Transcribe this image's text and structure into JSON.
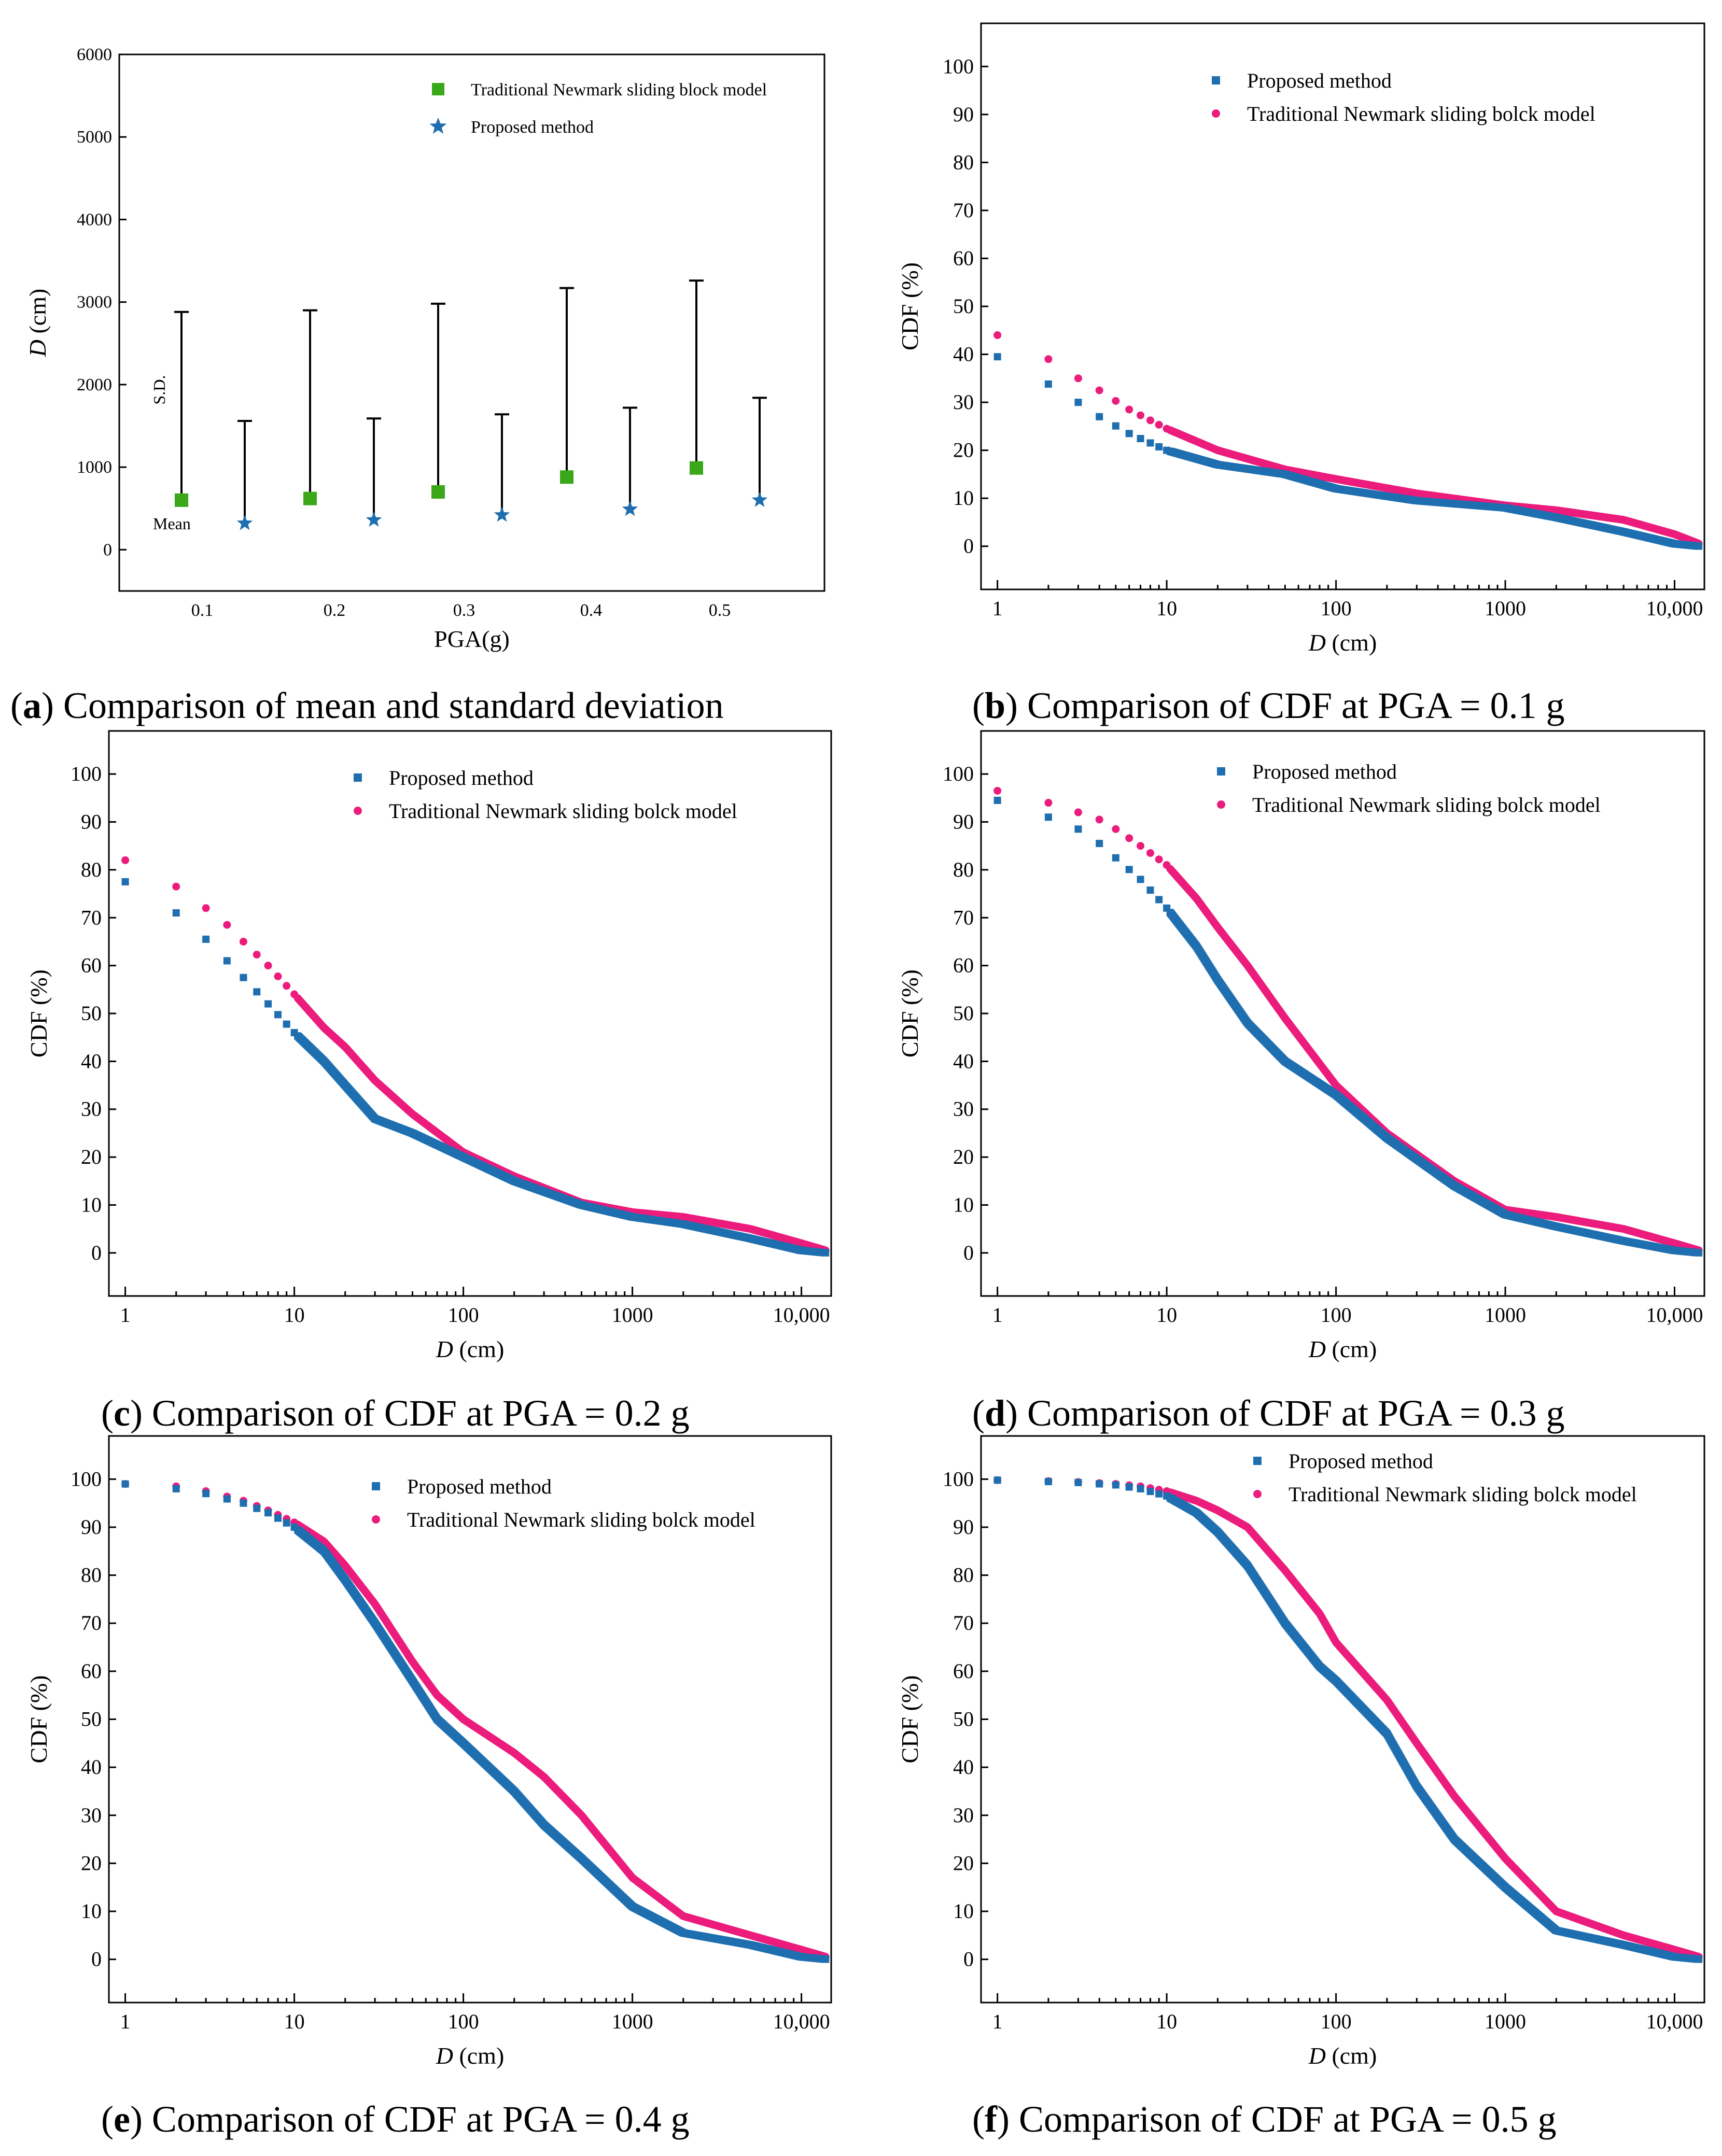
{
  "colors": {
    "proposed": "#1f6fb0",
    "traditional": "#ec1c7c",
    "traditional_bar": "#3aa81a",
    "axis": "#000000"
  },
  "chart_data": [
    {
      "id": "a",
      "type": "scatter",
      "caption_letter": "a",
      "caption_text": " Comparison of mean and standard deviation",
      "xlabel": "PGA(g)",
      "ylabel_italic": "D",
      "ylabel_rest": " (cm)",
      "xticks": [
        "0.1",
        "0.2",
        "0.3",
        "0.4",
        "0.5"
      ],
      "ylim": [
        -500,
        6000
      ],
      "yticks": [
        0,
        1000,
        2000,
        3000,
        4000,
        5000,
        6000
      ],
      "annotations": {
        "sd": "S.D.",
        "mean": "Mean"
      },
      "legend_position": "top-right",
      "series": [
        {
          "name": "Traditional Newmark sliding block model",
          "marker": "square",
          "pga": [
            0.1,
            0.2,
            0.3,
            0.4,
            0.5
          ],
          "mean": [
            600,
            620,
            700,
            880,
            990
          ],
          "upper": [
            2880,
            2900,
            2980,
            3170,
            3260
          ]
        },
        {
          "name": "Proposed method",
          "marker": "star",
          "pga": [
            0.1,
            0.2,
            0.3,
            0.4,
            0.5
          ],
          "mean": [
            320,
            360,
            420,
            490,
            600
          ],
          "upper": [
            1560,
            1590,
            1640,
            1720,
            1840
          ]
        }
      ]
    },
    {
      "id": "b",
      "type": "scatter",
      "caption_letter": "b",
      "caption_text": " Comparison of CDF at PGA = 0.1 g",
      "xlabel_italic": "D",
      "xlabel_rest": " (cm)",
      "ylabel": "CDF (%)",
      "xscale": "log",
      "xlim": [
        0.8,
        15000
      ],
      "ylim": [
        -9,
        109
      ],
      "xticks": [
        "1",
        "10",
        "100",
        "1000",
        "10,000"
      ],
      "yticks": [
        0,
        10,
        20,
        30,
        40,
        50,
        60,
        70,
        80,
        90,
        100
      ],
      "legend_position": "top-right",
      "series": [
        {
          "name": "Proposed method",
          "marker": "square",
          "x": [
            1,
            2,
            3,
            4,
            6,
            10,
            20,
            50,
            100,
            300,
            1000,
            2000,
            5000,
            10000,
            14000
          ],
          "y": [
            39.5,
            33.8,
            30,
            27,
            23.5,
            20,
            17,
            15,
            12,
            9.5,
            8,
            6,
            3,
            0.5,
            0
          ]
        },
        {
          "name": "Traditional Newmark sliding bolck model",
          "marker": "circle",
          "x": [
            1,
            2,
            3,
            4,
            6,
            10,
            20,
            50,
            100,
            300,
            1000,
            2000,
            5000,
            10000,
            14000
          ],
          "y": [
            44,
            39,
            35,
            32.5,
            28.5,
            24.5,
            20,
            16,
            14,
            11,
            8.5,
            7.5,
            5.5,
            2.5,
            0.5
          ]
        }
      ]
    },
    {
      "id": "c",
      "type": "scatter",
      "caption_letter": "c",
      "caption_text": " Comparison of CDF at PGA = 0.2 g",
      "xlabel_italic": "D",
      "xlabel_rest": " (cm)",
      "ylabel": "CDF (%)",
      "xscale": "log",
      "xlim": [
        0.8,
        15000
      ],
      "ylim": [
        -9,
        109
      ],
      "xticks": [
        "1",
        "10",
        "100",
        "1000",
        "10,000"
      ],
      "yticks": [
        0,
        10,
        20,
        30,
        40,
        50,
        60,
        70,
        80,
        90,
        100
      ],
      "legend_position": "top-right",
      "series": [
        {
          "name": "Proposed method",
          "marker": "square",
          "x": [
            1,
            2,
            3,
            4,
            5,
            7,
            10,
            15,
            20,
            30,
            50,
            100,
            200,
            500,
            1000,
            2000,
            5000,
            10000,
            14000
          ],
          "y": [
            77.5,
            71,
            65.5,
            61,
            57.5,
            52,
            46,
            40,
            35,
            28,
            25,
            20,
            15,
            10,
            7.5,
            6,
            3,
            0.5,
            0
          ]
        },
        {
          "name": "Traditional Newmark sliding bolck model",
          "marker": "circle",
          "x": [
            1,
            2,
            3,
            4,
            5,
            7,
            10,
            15,
            20,
            30,
            50,
            100,
            200,
            500,
            1000,
            2000,
            5000,
            10000,
            14000
          ],
          "y": [
            82,
            76.5,
            72,
            68.5,
            65,
            60,
            54,
            47,
            43,
            36,
            29,
            21,
            16,
            10.5,
            8.5,
            7.5,
            5,
            2,
            0.5
          ]
        }
      ]
    },
    {
      "id": "d",
      "type": "scatter",
      "caption_letter": "d",
      "caption_text": " Comparison of CDF at PGA = 0.3 g",
      "xlabel_italic": "D",
      "xlabel_rest": " (cm)",
      "ylabel": "CDF (%)",
      "xscale": "log",
      "xlim": [
        0.8,
        15000
      ],
      "ylim": [
        -9,
        109
      ],
      "xticks": [
        "1",
        "10",
        "100",
        "1000",
        "10,000"
      ],
      "yticks": [
        0,
        10,
        20,
        30,
        40,
        50,
        60,
        70,
        80,
        90,
        100
      ],
      "legend_position": "top-right",
      "series": [
        {
          "name": "Proposed method",
          "marker": "square",
          "x": [
            1,
            2,
            3,
            4,
            5,
            7,
            10,
            15,
            20,
            30,
            50,
            100,
            200,
            500,
            1000,
            2000,
            5000,
            10000,
            14000
          ],
          "y": [
            94.5,
            91,
            88.5,
            85.5,
            82.5,
            78,
            72,
            64,
            57,
            48,
            40,
            33,
            24,
            14,
            8,
            5.5,
            2.5,
            0.5,
            0
          ]
        },
        {
          "name": "Traditional Newmark sliding bolck model",
          "marker": "circle",
          "x": [
            1,
            2,
            3,
            4,
            5,
            7,
            10,
            15,
            20,
            30,
            50,
            100,
            200,
            500,
            1000,
            2000,
            5000,
            10000,
            14000
          ],
          "y": [
            96.5,
            94,
            92,
            90.5,
            88.5,
            85,
            81,
            74,
            68,
            60,
            49,
            35,
            25,
            15,
            9,
            7.5,
            5,
            2,
            0.5
          ]
        }
      ]
    },
    {
      "id": "e",
      "type": "scatter",
      "caption_letter": "e",
      "caption_text": " Comparison of CDF at PGA = 0.4 g",
      "xlabel_italic": "D",
      "xlabel_rest": " (cm)",
      "ylabel": "CDF (%)",
      "xscale": "log",
      "xlim": [
        0.8,
        15000
      ],
      "ylim": [
        -9,
        109
      ],
      "xticks": [
        "1",
        "10",
        "100",
        "1000",
        "10,000"
      ],
      "yticks": [
        0,
        10,
        20,
        30,
        40,
        50,
        60,
        70,
        80,
        90,
        100
      ],
      "legend_position": "top-right",
      "series": [
        {
          "name": "Proposed method",
          "marker": "square",
          "x": [
            1,
            2,
            3,
            5,
            7,
            10,
            15,
            20,
            30,
            50,
            70,
            100,
            200,
            300,
            500,
            1000,
            2000,
            5000,
            10000,
            14000
          ],
          "y": [
            99,
            98,
            97,
            95,
            93,
            90,
            85,
            79,
            70,
            58,
            50,
            45,
            35,
            28,
            21,
            11,
            5.5,
            3,
            0.5,
            0
          ]
        },
        {
          "name": "Traditional Newmark sliding bolck model",
          "marker": "circle",
          "x": [
            1,
            2,
            3,
            5,
            7,
            10,
            15,
            20,
            30,
            50,
            70,
            100,
            200,
            300,
            500,
            1000,
            2000,
            5000,
            10000,
            14000
          ],
          "y": [
            99,
            98.5,
            97.5,
            95.5,
            93.5,
            91,
            87,
            82,
            74,
            62,
            55,
            50,
            43,
            38,
            30,
            17,
            9,
            5,
            2,
            0.5
          ]
        }
      ]
    },
    {
      "id": "f",
      "type": "scatter",
      "caption_letter": "f",
      "caption_text": " Comparison of CDF at PGA = 0.5 g",
      "xlabel_italic": "D",
      "xlabel_rest": " (cm)",
      "ylabel": "CDF (%)",
      "xscale": "log",
      "xlim": [
        0.8,
        15000
      ],
      "ylim": [
        -9,
        109
      ],
      "xticks": [
        "1",
        "10",
        "100",
        "1000",
        "10,000"
      ],
      "yticks": [
        0,
        10,
        20,
        30,
        40,
        50,
        60,
        70,
        80,
        90,
        100
      ],
      "legend_position": "top-right",
      "series": [
        {
          "name": "Proposed method",
          "marker": "square",
          "x": [
            1,
            2,
            3,
            5,
            7,
            10,
            15,
            20,
            30,
            50,
            80,
            100,
            200,
            300,
            500,
            1000,
            2000,
            5000,
            10000,
            14000
          ],
          "y": [
            99.8,
            99.5,
            99.3,
            98.8,
            98,
            96.5,
            93,
            89,
            82,
            70,
            61,
            58,
            47,
            36,
            25,
            15,
            6,
            3,
            0.5,
            0
          ]
        },
        {
          "name": "Traditional Newmark sliding bolck model",
          "marker": "circle",
          "x": [
            1,
            2,
            3,
            5,
            7,
            10,
            15,
            20,
            30,
            50,
            80,
            100,
            200,
            300,
            500,
            1000,
            2000,
            5000,
            10000,
            14000
          ],
          "y": [
            99.8,
            99.6,
            99.4,
            99,
            98.5,
            97.5,
            95.5,
            93.5,
            90,
            81,
            72,
            66,
            54,
            45,
            34,
            21,
            10,
            5,
            2,
            0.5
          ]
        }
      ]
    }
  ]
}
